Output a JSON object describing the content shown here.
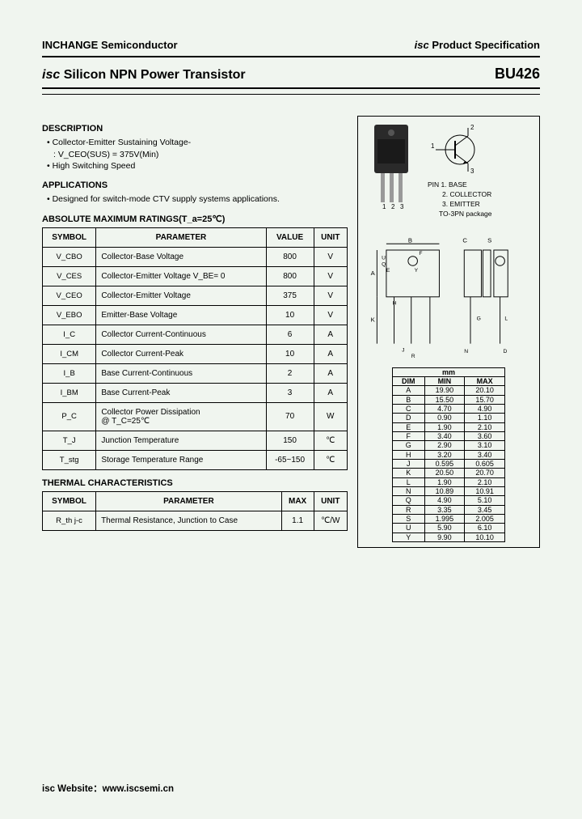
{
  "header": {
    "company": "INCHANGE Semiconductor",
    "spec_prefix": "isc",
    "spec_label": " Product Specification"
  },
  "title": {
    "prefix": "isc",
    "main": " Silicon NPN Power Transistor",
    "part": "BU426"
  },
  "description": {
    "heading": "DESCRIPTION",
    "items": [
      "Collector-Emitter Sustaining Voltage-"
    ],
    "sub": ": V_CEO(SUS) = 375V(Min)",
    "item2": "High Switching Speed"
  },
  "applications": {
    "heading": "APPLICATIONS",
    "items": [
      "Designed for switch-mode CTV supply systems applications."
    ]
  },
  "ratings": {
    "heading": "ABSOLUTE MAXIMUM RATINGS(T_a=25℃)",
    "columns": [
      "SYMBOL",
      "PARAMETER",
      "VALUE",
      "UNIT"
    ],
    "rows": [
      {
        "sym": "V_CBO",
        "param": "Collector-Base Voltage",
        "value": "800",
        "unit": "V"
      },
      {
        "sym": "V_CES",
        "param": "Collector-Emitter Voltage V_BE= 0",
        "value": "800",
        "unit": "V"
      },
      {
        "sym": "V_CEO",
        "param": "Collector-Emitter Voltage",
        "value": "375",
        "unit": "V"
      },
      {
        "sym": "V_EBO",
        "param": "Emitter-Base Voltage",
        "value": "10",
        "unit": "V"
      },
      {
        "sym": "I_C",
        "param": "Collector Current-Continuous",
        "value": "6",
        "unit": "A"
      },
      {
        "sym": "I_CM",
        "param": "Collector Current-Peak",
        "value": "10",
        "unit": "A"
      },
      {
        "sym": "I_B",
        "param": "Base Current-Continuous",
        "value": "2",
        "unit": "A"
      },
      {
        "sym": "I_BM",
        "param": "Base Current-Peak",
        "value": "3",
        "unit": "A"
      },
      {
        "sym": "P_C",
        "param": "Collector Power Dissipation\n@ T_C=25℃",
        "value": "70",
        "unit": "W"
      },
      {
        "sym": "T_J",
        "param": "Junction Temperature",
        "value": "150",
        "unit": "℃"
      },
      {
        "sym": "T_stg",
        "param": "Storage Temperature Range",
        "value": "-65~150",
        "unit": "℃"
      }
    ]
  },
  "thermal": {
    "heading": "THERMAL CHARACTERISTICS",
    "columns": [
      "SYMBOL",
      "PARAMETER",
      "MAX",
      "UNIT"
    ],
    "rows": [
      {
        "sym": "R_th j-c",
        "param": "Thermal Resistance, Junction to Case",
        "value": "1.1",
        "unit": "℃/W"
      }
    ]
  },
  "package": {
    "pins_heading": "PIN",
    "pins": [
      "1. BASE",
      "2. COLLECTOR",
      "3. EMITTER"
    ],
    "pkg_name": "TO-3PN package",
    "pin_nums": "1  2  3"
  },
  "dimensions": {
    "unit_heading": "mm",
    "columns": [
      "DIM",
      "MIN",
      "MAX"
    ],
    "rows": [
      {
        "d": "A",
        "min": "19.90",
        "max": "20.10"
      },
      {
        "d": "B",
        "min": "15.50",
        "max": "15.70"
      },
      {
        "d": "C",
        "min": "4.70",
        "max": "4.90"
      },
      {
        "d": "D",
        "min": "0.90",
        "max": "1.10"
      },
      {
        "d": "E",
        "min": "1.90",
        "max": "2.10"
      },
      {
        "d": "F",
        "min": "3.40",
        "max": "3.60"
      },
      {
        "d": "G",
        "min": "2.90",
        "max": "3.10"
      },
      {
        "d": "H",
        "min": "3.20",
        "max": "3.40"
      },
      {
        "d": "J",
        "min": "0.595",
        "max": "0.605"
      },
      {
        "d": "K",
        "min": "20.50",
        "max": "20.70"
      },
      {
        "d": "L",
        "min": "1.90",
        "max": "2.10"
      },
      {
        "d": "N",
        "min": "10.89",
        "max": "10.91"
      },
      {
        "d": "Q",
        "min": "4.90",
        "max": "5.10"
      },
      {
        "d": "R",
        "min": "3.35",
        "max": "3.45"
      },
      {
        "d": "S",
        "min": "1.995",
        "max": "2.005"
      },
      {
        "d": "U",
        "min": "5.90",
        "max": "6.10"
      },
      {
        "d": "Y",
        "min": "9.90",
        "max": "10.10"
      }
    ]
  },
  "footer": {
    "label": "isc Website：",
    "url": "www.iscsemi.cn"
  },
  "colors": {
    "bg": "#f0f5ef",
    "text": "#000000",
    "border": "#000000"
  }
}
